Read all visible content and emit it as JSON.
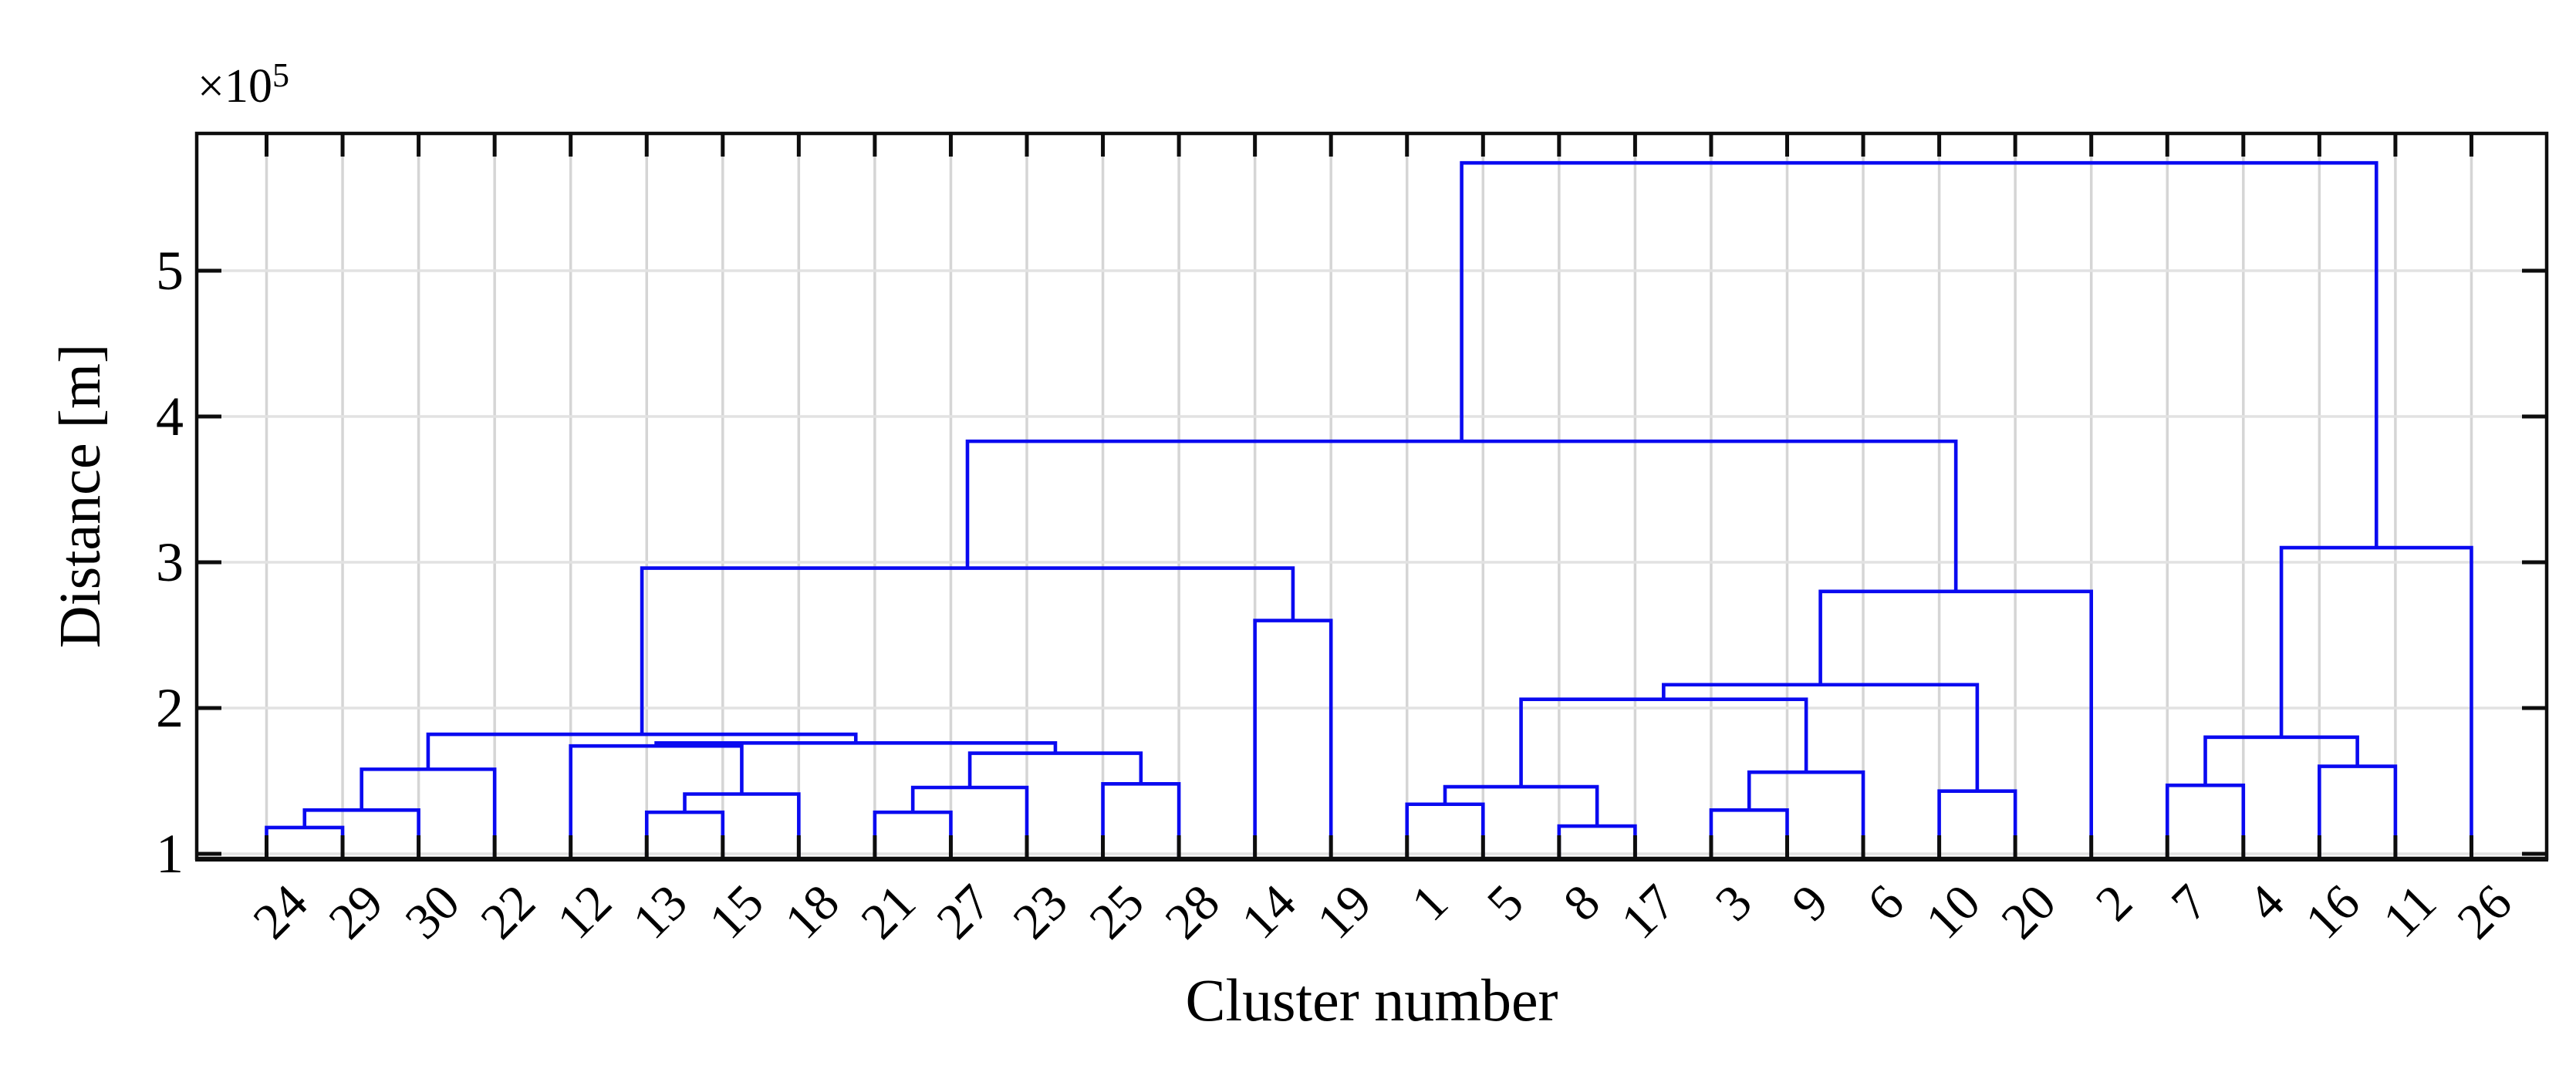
{
  "figure": {
    "offset_base": "×10",
    "offset_exp": "5",
    "ylabel": "Distance [m]",
    "xlabel": "Cluster number"
  },
  "colors": {
    "line": "#0a0af0",
    "grid_vertical": "#d5d5d5",
    "grid_horizontal": "#e2e2e2",
    "frame": "#0d0d0d",
    "background": "#ffffff",
    "text": "#000000"
  },
  "chart_data": {
    "type": "dendrogram",
    "title": "",
    "xlabel": "Cluster number",
    "ylabel": "Distance [m]",
    "y_scale_label": "×10⁵",
    "y_units": "m",
    "grid": true,
    "yticks": [
      "1",
      "2",
      "3",
      "4",
      "5"
    ],
    "ylim": [
      0.97,
      5.94
    ],
    "leaves": [
      "24",
      "29",
      "30",
      "22",
      "12",
      "13",
      "15",
      "18",
      "21",
      "27",
      "23",
      "25",
      "28",
      "14",
      "19",
      "1",
      "5",
      "8",
      "17",
      "3",
      "9",
      "6",
      "10",
      "20",
      "2",
      "7",
      "4",
      "16",
      "11",
      "26"
    ],
    "merge_height_unit": "1e5 m",
    "merges": [
      {
        "id": "M1",
        "a": "24",
        "b": "29",
        "h": 1.18
      },
      {
        "id": "M2",
        "a": "M1",
        "b": "30",
        "h": 1.3
      },
      {
        "id": "M3",
        "a": "M2",
        "b": "22",
        "h": 1.58
      },
      {
        "id": "M4",
        "a": "13",
        "b": "15",
        "h": 1.285
      },
      {
        "id": "M5",
        "a": "M4",
        "b": "18",
        "h": 1.41
      },
      {
        "id": "M6",
        "a": "12",
        "b": "M5",
        "h": 1.74
      },
      {
        "id": "M7",
        "a": "21",
        "b": "27",
        "h": 1.285
      },
      {
        "id": "M8",
        "a": "M7",
        "b": "23",
        "h": 1.455
      },
      {
        "id": "M9",
        "a": "25",
        "b": "28",
        "h": 1.48
      },
      {
        "id": "M10",
        "a": "M8",
        "b": "M9",
        "h": 1.69
      },
      {
        "id": "M11",
        "a": "M6",
        "b": "M10",
        "h": 1.76
      },
      {
        "id": "M12",
        "a": "M3",
        "b": "M11",
        "h": 1.82
      },
      {
        "id": "M13",
        "a": "14",
        "b": "19",
        "h": 2.6
      },
      {
        "id": "M14",
        "a": "M12",
        "b": "M13",
        "h": 2.96
      },
      {
        "id": "M15",
        "a": "8",
        "b": "17",
        "h": 1.19
      },
      {
        "id": "M16",
        "a": "1",
        "b": "5",
        "h": 1.34
      },
      {
        "id": "M17",
        "a": "M16",
        "b": "M15",
        "h": 1.46
      },
      {
        "id": "M18",
        "a": "3",
        "b": "9",
        "h": 1.3
      },
      {
        "id": "M19",
        "a": "M18",
        "b": "6",
        "h": 1.56
      },
      {
        "id": "M20",
        "a": "10",
        "b": "20",
        "h": 1.43
      },
      {
        "id": "M21",
        "a": "M17",
        "b": "M19",
        "h": 2.06
      },
      {
        "id": "M22",
        "a": "M21",
        "b": "M20",
        "h": 2.16
      },
      {
        "id": "M23",
        "a": "M22",
        "b": "2",
        "h": 2.8
      },
      {
        "id": "M24",
        "a": "7",
        "b": "4",
        "h": 1.47
      },
      {
        "id": "M25",
        "a": "16",
        "b": "11",
        "h": 1.6
      },
      {
        "id": "M26",
        "a": "M24",
        "b": "M25",
        "h": 1.8
      },
      {
        "id": "M27",
        "a": "M26",
        "b": "26",
        "h": 3.1
      },
      {
        "id": "M28",
        "a": "M14",
        "b": "M23",
        "h": 3.83
      },
      {
        "id": "M29",
        "a": "M28",
        "b": "M27",
        "h": 5.74
      }
    ]
  }
}
